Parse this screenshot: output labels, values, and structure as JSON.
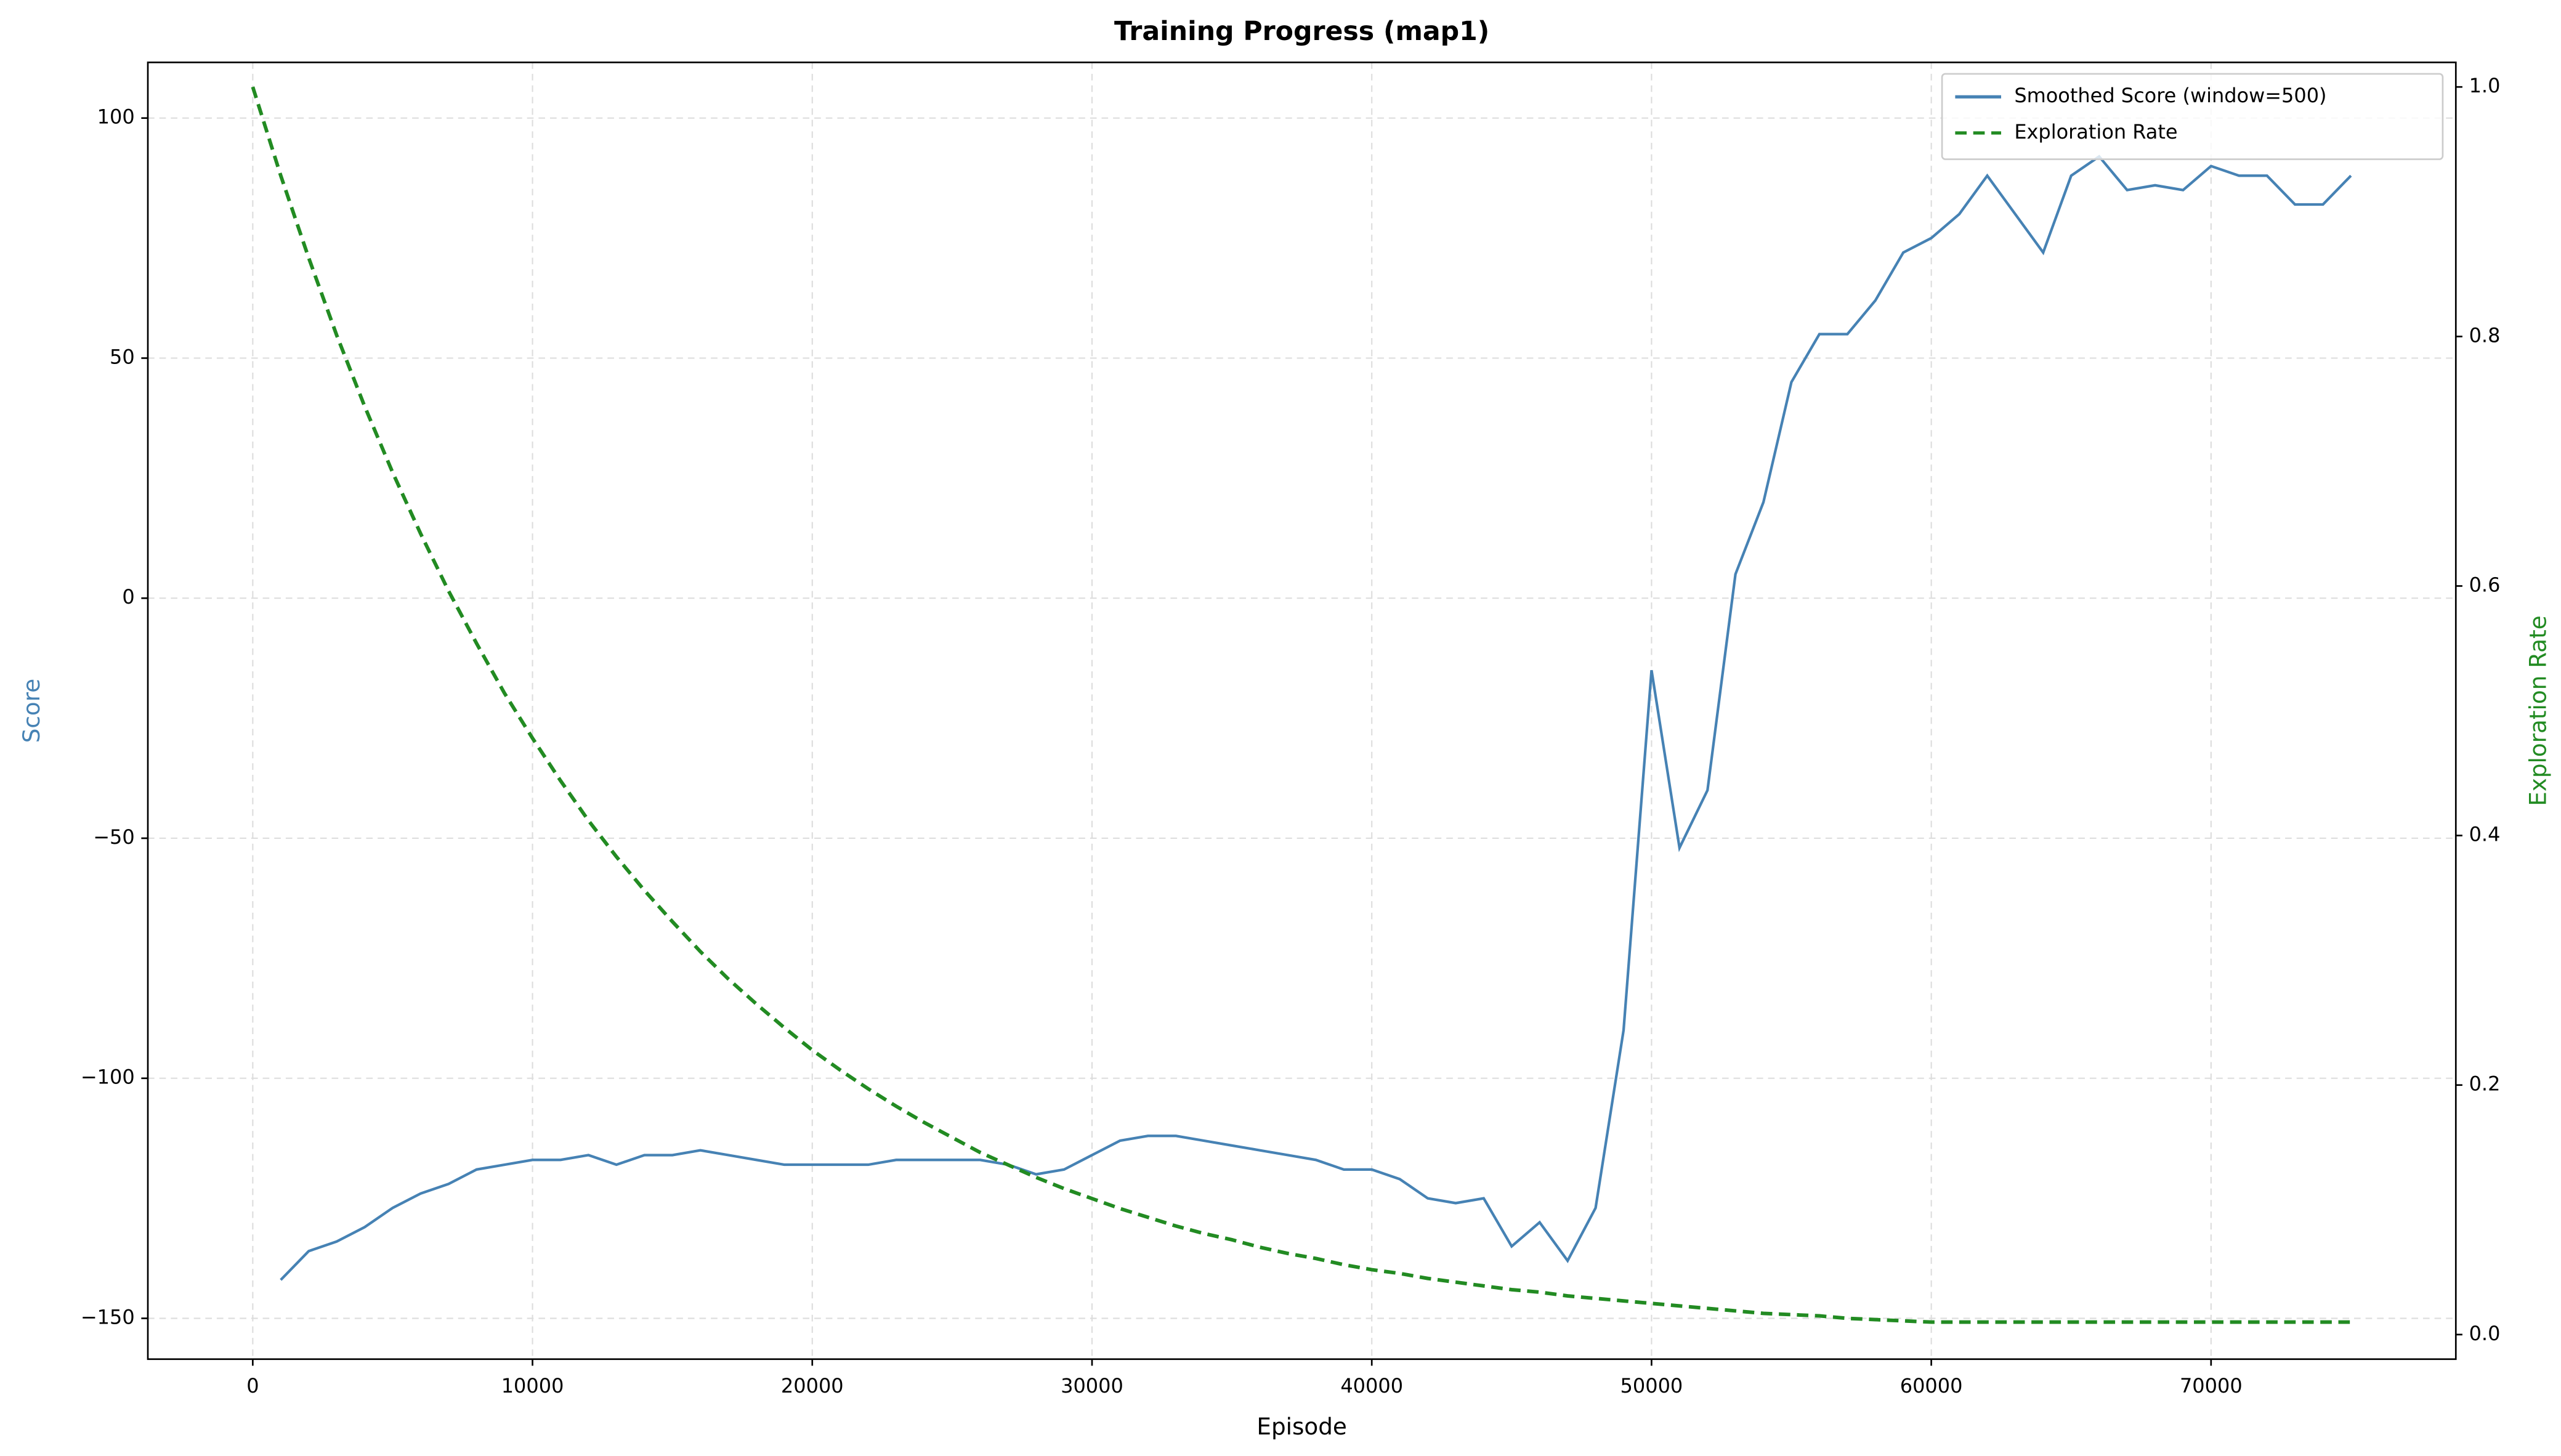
{
  "chart_data": {
    "type": "line",
    "title": "Training Progress (map1)",
    "x_label": "Episode",
    "y_label": "Score",
    "y2_label": "Exploration Rate",
    "x": [
      0,
      1000,
      2000,
      3000,
      4000,
      5000,
      6000,
      7000,
      8000,
      9000,
      10000,
      11000,
      12000,
      13000,
      14000,
      15000,
      16000,
      17000,
      18000,
      19000,
      20000,
      21000,
      22000,
      23000,
      24000,
      25000,
      26000,
      27000,
      28000,
      29000,
      30000,
      31000,
      32000,
      33000,
      34000,
      35000,
      36000,
      37000,
      38000,
      39000,
      40000,
      41000,
      42000,
      43000,
      44000,
      45000,
      46000,
      47000,
      48000,
      49000,
      50000,
      51000,
      52000,
      53000,
      54000,
      55000,
      56000,
      57000,
      58000,
      59000,
      60000,
      61000,
      62000,
      63000,
      64000,
      65000,
      66000,
      67000,
      68000,
      69000,
      70000,
      71000,
      72000,
      73000,
      74000,
      75000
    ],
    "series": [
      {
        "name": "Smoothed Score (window=500)",
        "color": "#4682b4",
        "linestyle": "solid",
        "axis": "y",
        "values": [
          null,
          -142,
          -136,
          -134,
          -131,
          -127,
          -124,
          -122,
          -119,
          -118,
          -117,
          -117,
          -116,
          -118,
          -116,
          -116,
          -115,
          -116,
          -117,
          -118,
          -118,
          -118,
          -118,
          -117,
          -117,
          -117,
          -117,
          -118,
          -120,
          -119,
          -116,
          -113,
          -112,
          -112,
          -113,
          -114,
          -115,
          -116,
          -117,
          -119,
          -119,
          -121,
          -125,
          -126,
          -125,
          -135,
          -130,
          -138,
          -127,
          -90,
          -15,
          -52,
          -40,
          5,
          20,
          45,
          55,
          55,
          62,
          72,
          75,
          80,
          88,
          80,
          72,
          88,
          92,
          85,
          86,
          85,
          90,
          88,
          88,
          82,
          82,
          88
        ]
      },
      {
        "name": "Exploration Rate",
        "color": "#228b22",
        "linestyle": "dashed",
        "axis": "y2",
        "values": [
          1.0,
          0.929,
          0.863,
          0.801,
          0.744,
          0.691,
          0.642,
          0.596,
          0.554,
          0.514,
          0.478,
          0.444,
          0.412,
          0.383,
          0.356,
          0.331,
          0.307,
          0.285,
          0.265,
          0.246,
          0.228,
          0.212,
          0.197,
          0.183,
          0.17,
          0.158,
          0.146,
          0.136,
          0.126,
          0.117,
          0.109,
          0.101,
          0.094,
          0.087,
          0.081,
          0.076,
          0.07,
          0.065,
          0.061,
          0.056,
          0.052,
          0.049,
          0.045,
          0.042,
          0.039,
          0.036,
          0.034,
          0.031,
          0.029,
          0.027,
          0.025,
          0.023,
          0.021,
          0.019,
          0.017,
          0.016,
          0.015,
          0.013,
          0.012,
          0.011,
          0.01,
          0.01,
          0.01,
          0.01,
          0.01,
          0.01,
          0.01,
          0.01,
          0.01,
          0.01,
          0.01,
          0.01,
          0.01,
          0.01,
          0.01,
          0.01
        ]
      }
    ],
    "xlim": [
      -3750,
      78750
    ],
    "ylim": [
      -158.5,
      111.6
    ],
    "y2lim": [
      -0.0197,
      1.0197
    ],
    "xticks": [
      0,
      10000,
      20000,
      30000,
      40000,
      50000,
      60000,
      70000
    ],
    "yticks": [
      {
        "value": -150,
        "label": "−150"
      },
      {
        "value": -100,
        "label": "−100"
      },
      {
        "value": -50,
        "label": "−50"
      },
      0,
      50,
      100
    ],
    "y2ticks": [
      {
        "value": 0,
        "label": "0.0"
      },
      0.2,
      0.4,
      0.6,
      0.8,
      {
        "value": 1,
        "label": "1.0"
      }
    ],
    "y_color": "#4682b4",
    "y2_color": "#228b22",
    "grid": true,
    "legend": "upper right"
  }
}
